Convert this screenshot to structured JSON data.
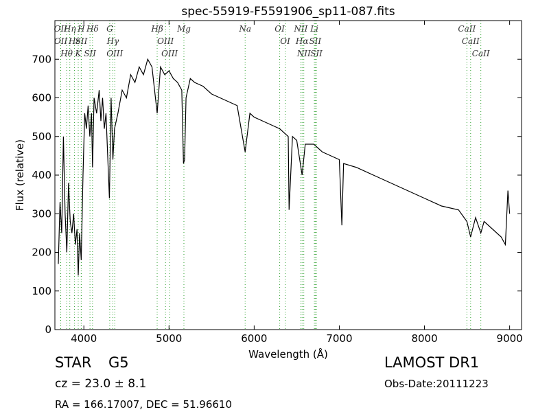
{
  "chart_data": {
    "type": "line",
    "title": "spec-55919-F5591906_sp11-087.fits",
    "x_label": "Wavelength (Å)",
    "y_label": "Flux (relative)",
    "xlim": [
      3660,
      9140
    ],
    "ylim": [
      0,
      800
    ],
    "xticks": [
      4000,
      5000,
      6000,
      7000,
      8000,
      9000
    ],
    "yticks": [
      0,
      100,
      200,
      300,
      400,
      500,
      600,
      700
    ],
    "series": [
      {
        "color": "#000000",
        "x": [
          3700,
          3720,
          3740,
          3760,
          3780,
          3800,
          3820,
          3840,
          3860,
          3880,
          3900,
          3920,
          3934,
          3950,
          3969,
          3990,
          4010,
          4030,
          4050,
          4070,
          4090,
          4102,
          4120,
          4150,
          4180,
          4200,
          4220,
          4240,
          4260,
          4280,
          4300,
          4320,
          4341,
          4360,
          4400,
          4450,
          4500,
          4550,
          4600,
          4650,
          4700,
          4750,
          4800,
          4861,
          4900,
          4950,
          5000,
          5050,
          5100,
          5150,
          5170,
          5183,
          5200,
          5250,
          5300,
          5400,
          5500,
          5600,
          5700,
          5800,
          5894,
          5950,
          6000,
          6100,
          6200,
          6300,
          6400,
          6410,
          6450,
          6500,
          6563,
          6600,
          6700,
          6800,
          6900,
          7000,
          7030,
          7050,
          7200,
          7400,
          7600,
          7800,
          8000,
          8200,
          8400,
          8498,
          8542,
          8600,
          8662,
          8700,
          8800,
          8900,
          8950,
          8980,
          9000
        ],
        "values": [
          170,
          330,
          250,
          500,
          300,
          200,
          380,
          280,
          250,
          300,
          220,
          260,
          140,
          250,
          180,
          400,
          560,
          520,
          580,
          500,
          560,
          420,
          600,
          560,
          620,
          540,
          600,
          520,
          560,
          450,
          340,
          600,
          440,
          520,
          560,
          620,
          600,
          660,
          640,
          680,
          660,
          700,
          680,
          560,
          680,
          660,
          670,
          650,
          640,
          620,
          430,
          440,
          600,
          650,
          640,
          630,
          610,
          600,
          590,
          580,
          460,
          560,
          550,
          540,
          530,
          520,
          500,
          310,
          500,
          490,
          400,
          480,
          480,
          460,
          450,
          440,
          270,
          430,
          420,
          400,
          380,
          360,
          340,
          320,
          310,
          280,
          240,
          290,
          250,
          280,
          260,
          240,
          220,
          360,
          300
        ]
      }
    ],
    "line_color": "#2ca02c",
    "lines": [
      {
        "x": 3727,
        "label": "OII"
      },
      {
        "x": 3729,
        "label": "OII"
      },
      {
        "x": 3798,
        "label": "Hθ"
      },
      {
        "x": 3835,
        "label": "Hη"
      },
      {
        "x": 3889,
        "label": "Hε"
      },
      {
        "x": 3934,
        "label": "K"
      },
      {
        "x": 3969,
        "label": "H"
      },
      {
        "x": 3970,
        "label": "SII"
      },
      {
        "x": 4072,
        "label": "SII"
      },
      {
        "x": 4102,
        "label": "Hδ"
      },
      {
        "x": 4304,
        "label": "G"
      },
      {
        "x": 4341,
        "label": "Hγ"
      },
      {
        "x": 4363,
        "label": "OIII"
      },
      {
        "x": 4861,
        "label": "Hβ"
      },
      {
        "x": 4959,
        "label": "OIII"
      },
      {
        "x": 5007,
        "label": "OIII"
      },
      {
        "x": 5175,
        "label": "Mg"
      },
      {
        "x": 5894,
        "label": "Na"
      },
      {
        "x": 6300,
        "label": "OI"
      },
      {
        "x": 6364,
        "label": "OI"
      },
      {
        "x": 6548,
        "label": "NII"
      },
      {
        "x": 6563,
        "label": "Hα"
      },
      {
        "x": 6583,
        "label": "NII"
      },
      {
        "x": 6707,
        "label": "Li"
      },
      {
        "x": 6717,
        "label": "SII"
      },
      {
        "x": 6731,
        "label": "SII"
      },
      {
        "x": 8498,
        "label": "CaII"
      },
      {
        "x": 8542,
        "label": "CaII"
      },
      {
        "x": 8662,
        "label": "CaII"
      }
    ]
  },
  "footer": {
    "class": "STAR",
    "subclass": "G5",
    "redshift": "cz = 23.0 ± 8.1",
    "survey": "LAMOST DR1",
    "obs_date": "Obs-Date:20111223",
    "coords": "RA = 166.17007, DEC = 51.96610"
  }
}
